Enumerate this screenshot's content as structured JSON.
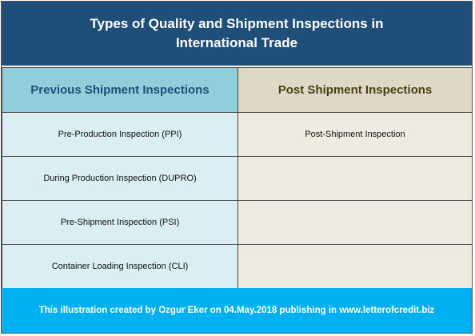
{
  "title": "Types of Quality and Shipment Inspections in International Trade",
  "columns": {
    "previous": "Previous Shipment Inspections",
    "post": "Post Shipment Inspections"
  },
  "rows": [
    {
      "previous": "Pre-Production Inspection (PPI)",
      "post": "Post-Shipment Inspection"
    },
    {
      "previous": "During Production Inspection (DUPRO)",
      "post": ""
    },
    {
      "previous": "Pre-Shipment Inspection (PSI)",
      "post": ""
    },
    {
      "previous": "Container Loading Inspection (CLI)",
      "post": ""
    }
  ],
  "footer": "This illustration created by Ozgur Eker on 04.May.2018 publishing in www.letterofcredit.biz",
  "colors": {
    "title_bg": "#1f4e79",
    "previous_header_bg": "#92cddc",
    "post_header_bg": "#ddd9c4",
    "previous_cell_bg": "#daeef3",
    "post_cell_bg": "#eeece1",
    "footer_bg": "#00b0f0"
  }
}
